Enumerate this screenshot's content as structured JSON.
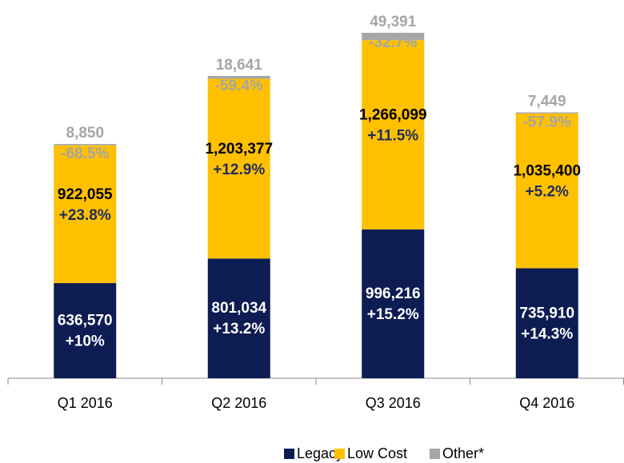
{
  "chart_data": {
    "type": "stacked_bar",
    "categories": [
      "Q1 2016",
      "Q2 2016",
      "Q3 2016",
      "Q4 2016"
    ],
    "series": [
      {
        "name": "Legacy",
        "color": "#0d1c52",
        "values": [
          636570,
          801034,
          996216,
          735910
        ],
        "value_labels": [
          "636,570",
          "801,034",
          "996,216",
          "735,910"
        ],
        "change_labels": [
          "+10%",
          "+13.2%",
          "+15.2%",
          "+14.3%"
        ]
      },
      {
        "name": "Low Cost",
        "color": "#ffc000",
        "values": [
          922055,
          1203377,
          1266099,
          1035400
        ],
        "value_labels": [
          "922,055",
          "1,203,377",
          "1,266,099",
          "1,035,400"
        ],
        "change_labels": [
          "+23.8%",
          "+12.9%",
          "+11.5%",
          "+5.2%"
        ]
      },
      {
        "name": "Other*",
        "color": "#a6a6a6",
        "values": [
          8850,
          18641,
          49391,
          7449
        ],
        "value_labels": [
          "8,850",
          "18,641",
          "49,391",
          "7,449"
        ],
        "change_labels": [
          "-68.5%",
          "-59.4%",
          "-32.7%",
          "-57.9%"
        ]
      }
    ]
  }
}
